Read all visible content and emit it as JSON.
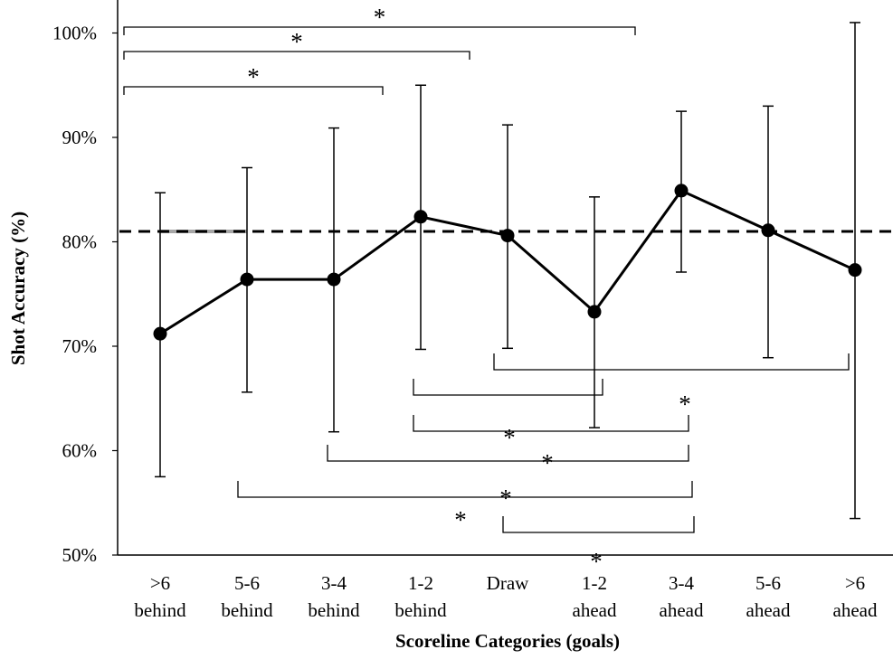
{
  "chart_data": {
    "type": "line",
    "xlabel": "Scoreline Categories (goals)",
    "ylabel": "Shot Accuracy (%)",
    "ylim": [
      50,
      100
    ],
    "yticks": [
      "50%",
      "60%",
      "70%",
      "80%",
      "90%",
      "100%"
    ],
    "categories": [
      [
        ">6",
        "behind"
      ],
      [
        "5-6",
        "behind"
      ],
      [
        "3-4",
        "behind"
      ],
      [
        "1-2",
        "behind"
      ],
      [
        "Draw"
      ],
      [
        "1-2",
        "ahead"
      ],
      [
        "3-4",
        "ahead"
      ],
      [
        "5-6",
        "ahead"
      ],
      [
        ">6",
        "ahead"
      ]
    ],
    "series": [
      {
        "values": [
          71.2,
          76.4,
          76.4,
          82.4,
          80.6,
          73.3,
          84.9,
          81.1,
          77.3
        ],
        "error_low": [
          57.5,
          65.6,
          61.8,
          69.7,
          69.8,
          62.2,
          77.1,
          68.9,
          53.5
        ],
        "error_high": [
          84.7,
          87.1,
          90.9,
          95.0,
          91.2,
          84.3,
          92.5,
          93.0,
          101.0
        ],
        "color": "#000000"
      }
    ],
    "reference_line": {
      "value": 81.0,
      "style": "dashed",
      "color": "#000000"
    },
    "reference_line_highlight": {
      "from": 0,
      "to": 1,
      "color": "#a6a6a6"
    },
    "significance": {
      "marker": "*",
      "above": [
        {
          "from": 0,
          "to": 6
        },
        {
          "from": 0,
          "to": 4
        },
        {
          "from": 0,
          "to": 3
        }
      ],
      "below": [
        {
          "from": 4,
          "to": 8
        },
        {
          "from": 3,
          "to": 5
        },
        {
          "from": 3,
          "to": 6
        },
        {
          "from": 2,
          "to": 6
        },
        {
          "from": 1,
          "to": 6
        },
        {
          "from": 4,
          "to": 6
        }
      ],
      "extra_star": true
    }
  }
}
